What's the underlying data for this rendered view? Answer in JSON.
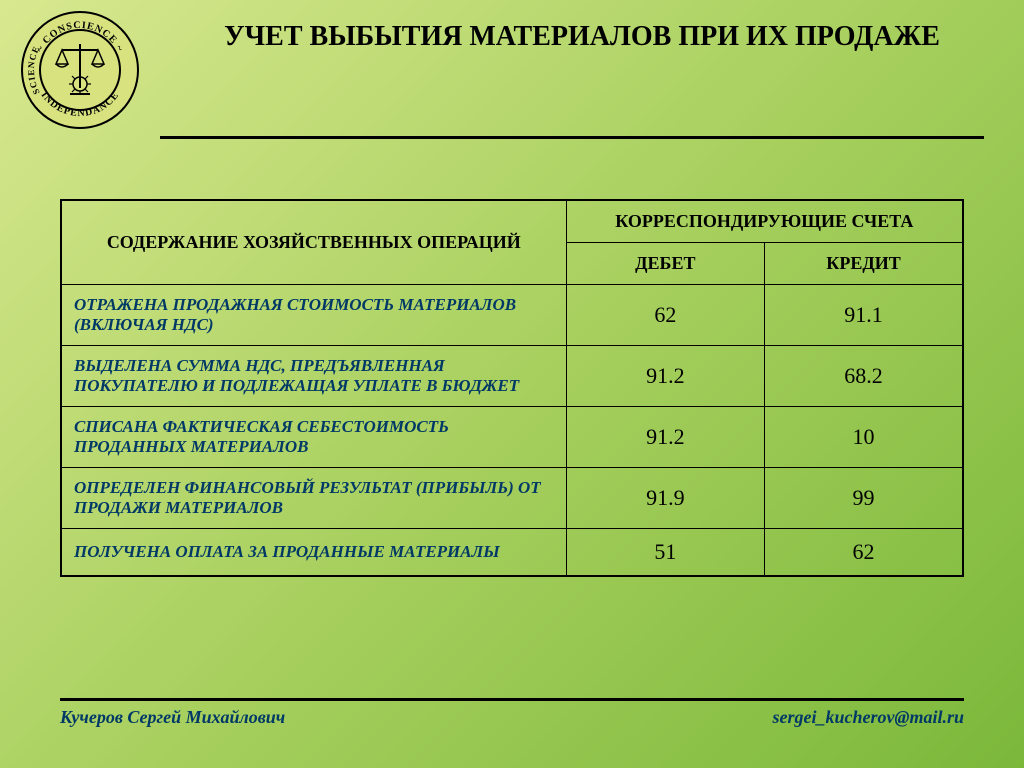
{
  "title": "УЧЕТ ВЫБЫТИЯ МАТЕРИАЛОВ ПРИ ИХ ПРОДАЖЕ",
  "seal": {
    "top": "~ CONSCIENCE ~",
    "left": "SCIENCE",
    "bottom": "INDEPENDANCE"
  },
  "table": {
    "header_ops": "СОДЕРЖАНИЕ ХОЗЯЙСТВЕННЫХ ОПЕРАЦИЙ",
    "header_accounts": "КОРРЕСПОНДИРУЮЩИЕ СЧЕТА",
    "header_debit": "ДЕБЕТ",
    "header_credit": "КРЕДИТ",
    "rows": [
      {
        "label": "ОТРАЖЕНА ПРОДАЖНАЯ СТОИМОСТЬ МАТЕРИАЛОВ (ВКЛЮЧАЯ НДС)",
        "debit": "62",
        "credit": "91.1"
      },
      {
        "label": "ВЫДЕЛЕНА СУММА НДС, ПРЕДЪЯВЛЕННАЯ ПОКУПАТЕЛЮ И ПОДЛЕЖАЩАЯ УПЛАТЕ В БЮДЖЕТ",
        "debit": "91.2",
        "credit": "68.2"
      },
      {
        "label": "СПИСАНА ФАКТИЧЕСКАЯ СЕБЕСТОИМОСТЬ ПРОДАННЫХ МАТЕРИАЛОВ",
        "debit": "91.2",
        "credit": "10"
      },
      {
        "label": "ОПРЕДЕЛЕН ФИНАНСОВЫЙ РЕЗУЛЬТАТ (ПРИБЫЛЬ) ОТ ПРОДАЖИ МАТЕРИАЛОВ",
        "debit": "91.9",
        "credit": "99"
      },
      {
        "label": "ПОЛУЧЕНА ОПЛАТА ЗА ПРОДАННЫЕ МАТЕРИАЛЫ",
        "debit": "51",
        "credit": "62"
      }
    ]
  },
  "footer": {
    "author": "Кучеров Сергей Михайлович",
    "email": "sergei_kucherov@mail.ru"
  },
  "colors": {
    "label_color": "#003866",
    "border_color": "#000000"
  }
}
